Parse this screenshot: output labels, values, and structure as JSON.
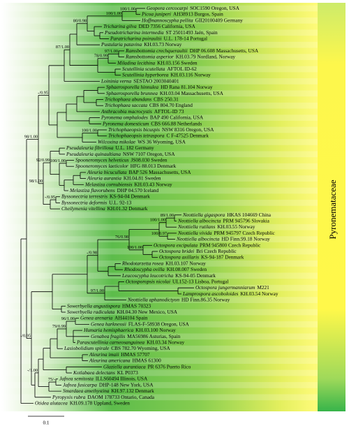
{
  "taxa": [
    {
      "species": "Geopora cercocarpi",
      "voucher": "SOC1590 Oregon, USA"
    },
    {
      "species": "Picoa juniperi",
      "voucher": "AH38913 Burgos, Spain"
    },
    {
      "species": "Hoffmannoscypha pellita",
      "voucher": "GII20100409 Germany"
    },
    {
      "species": "Tricharina gilva",
      "voucher": "DED 7356 California, USA"
    },
    {
      "species": "Pseudotricharina intermedia",
      "voucher": "ST 25011493 Jaén, Spain"
    },
    {
      "species": "Paratricharina poiraultii",
      "voucher": "U.L. 178-14 Portugal"
    },
    {
      "species": "Pustularia patavina",
      "voucher": "KH.03.73 Norway"
    },
    {
      "species": "Ramsbottomia crechqueraultii",
      "voucher": "DHP 06.608 Massachusetts, USA"
    },
    {
      "species": "Ramsbottomia asperior",
      "voucher": "KH.03.79 Nordland, Norway"
    },
    {
      "species": "Miladina lecithina",
      "voucher": "KH.03.156 Sweden"
    },
    {
      "species": "Scutellinia scutellata",
      "voucher": "AFTOL ID-62"
    },
    {
      "species": "Scutellinia hyperborea",
      "voucher": "KH.03.116 Norway"
    },
    {
      "species": "Loininia verna",
      "voucher": "SESTAO 2003040401"
    },
    {
      "species": "Sphaerosporella hinnulea",
      "voucher": "HD Rana 81.104 Norway"
    },
    {
      "species": "Sphaerosporella brunnea",
      "voucher": "KH.03.04 Massachusetts, USA"
    },
    {
      "species": "Trichophaea abundans",
      "voucher": "CBS 250.31"
    },
    {
      "species": "Trichophaea saccata",
      "voucher": "CBS 804.70 England"
    },
    {
      "species": "Anthracobia macrocystis",
      "voucher": "AFTOL-ID 73"
    },
    {
      "species": "Pyronema omphalodes",
      "voucher": "BAP 490 California, USA"
    },
    {
      "species": "Pyronema domesticum",
      "voucher": "CBS 666.88 Netherlands"
    },
    {
      "species": "Trichophaeopsis bicuspis",
      "voucher": "NSW 8316 Oregon, USA"
    },
    {
      "species": "Trichophaeopsis tetraspora",
      "voucher": "C F-47525 Denmark"
    },
    {
      "species": "Wilcoxina mikolae",
      "voucher": "WS 36 Wyoming, USA"
    },
    {
      "species": "Pseudaleuria fibrillosa",
      "voucher": "U.L. 182 Germany"
    },
    {
      "species": "Pseudaleuria quinaultiana",
      "voucher": "NSW 7107 Oregon, USA"
    },
    {
      "species": "Spooneromyces helveticus",
      "voucher": "JS08.030 Sweden"
    },
    {
      "species": "Spooneromyces laeticolor",
      "voucher": "HFG 88.013 Denmark"
    },
    {
      "species": "Aleuria bicucullata",
      "voucher": "BAP 526 Massachusetts, USA"
    },
    {
      "species": "Aleuria aurantia",
      "voucher": "KH.04.81 Sweden"
    },
    {
      "species": "Melastiza cornubiensis",
      "voucher": "KH.03.43 Norway"
    },
    {
      "species": "Melastiza flavorubens",
      "voucher": "DHP 04.570 Iceland"
    },
    {
      "species": "Byssonectria terrestris",
      "voucher": "KS-94-04 Denmark"
    },
    {
      "species": "Byssonectria deformis",
      "voucher": "U.L. 92-13"
    },
    {
      "species": "Cheilymenia vitellina",
      "voucher": "KH.01.32 Denmark"
    },
    {
      "species": "Neottiella gigaspora",
      "voucher": "HKAS 104669 China"
    },
    {
      "species": "Neottiella albocincta",
      "voucher": "PRM 945796 Slovakia"
    },
    {
      "species": "Neottiella rutilans",
      "voucher": "KH.03.55 Norway"
    },
    {
      "species": "Neottiella vivida",
      "voucher": "PRM 945797 Czech Republic"
    },
    {
      "species": "Neottiella albocincta",
      "voucher": "HD Finn.99.18 Norway"
    },
    {
      "species": "Octospora excipulata",
      "voucher": "PRM 945800 Czech Republic"
    },
    {
      "species": "Octospora bridei",
      "voucher": "Bri Czech Republic"
    },
    {
      "species": "Octospora axillaris",
      "voucher": "KS-94-187 Denmark"
    },
    {
      "species": "Rhodotarzetta rosea",
      "voucher": "KH.03.107 Norway"
    },
    {
      "species": "Rhodoscypha ovilla",
      "voucher": "KH.08.007 Sweden"
    },
    {
      "species": "Leucoscypha leucotricha",
      "voucher": "KS-94-05 Denmark"
    },
    {
      "species": "Octosporopsis nicolai",
      "voucher": "UL152-13 Lisboa, Portugal"
    },
    {
      "species": "Octospora jungermanniarum",
      "voucher": "M221"
    },
    {
      "species": "Lamprospora ascoboloides",
      "voucher": "KH.03.54 Norway"
    },
    {
      "species": "Neottiella aphanodictyon",
      "voucher": "HD Finn.86.35 Norway"
    },
    {
      "species": "Sowerbyella angustispora",
      "voucher": "HMAS 70323"
    },
    {
      "species": "Sowerbyella radiculata",
      "voucher": "KH.04.30 New Mexico, USA"
    },
    {
      "species": "Genea arenaria",
      "voucher": "AH44104 Spain"
    },
    {
      "species": "Genea harknessii",
      "voucher": "FLAS-F-58938 Oregon, USA"
    },
    {
      "species": "Humaria hemisphaerica",
      "voucher": "KH.03.100 Norway"
    },
    {
      "species": "Genabea fragilis",
      "voucher": "MA56986 Asturias, Spain"
    },
    {
      "species": "Parascutellinia carneosanguinea",
      "voucher": "KH.03.34 Norway"
    },
    {
      "species": "Lasiobolidium spirale",
      "voucher": "CBS 782.70 Wyoming, USA"
    },
    {
      "species": "Aleurina imaii",
      "voucher": "HMAS 57707"
    },
    {
      "species": "Aleurina americana",
      "voucher": "HMAS 61300"
    },
    {
      "species": "Glaziella aurantiaca",
      "voucher": "PR 6376 Puerto Rico"
    },
    {
      "species": "Kotlabaea delectans",
      "voucher": "KL P0373"
    },
    {
      "species": "Jafnea semitosta",
      "voucher": "ILLS60494 Illinois, USA"
    },
    {
      "species": "Jafnea fusicarpa",
      "voucher": "DHP-148 New York, USA"
    },
    {
      "species": "Smardaea amethystina",
      "voucher": "KH.97.132 Denmark"
    },
    {
      "species": "Pyropyxis rubra",
      "voucher": "DAOM 178733 Ontario, Canada"
    },
    {
      "species": "Otidea alutacea",
      "voucher": "KH.09.178 Uppland, Sweden"
    }
  ],
  "supports": [
    "100/1.00",
    "100/1.00",
    "80/0.98",
    "97/1.00",
    "78/0.99",
    "87/1.00",
    "-/0.95",
    "100/1.00",
    "100/1.00",
    "92/0.99",
    "98/1.00",
    "-/0.95",
    "98/1.00",
    "89/1.00",
    "100/1.00",
    "100/0.97",
    "76/0.98",
    "-/0.98",
    "100/1.00",
    "97/1.00",
    "-/0.95",
    "96/1.00",
    "79/0.99",
    "-/1.00",
    "75/-"
  ],
  "family_label": "Pyronemataceae",
  "scale_bar": "0.1"
}
